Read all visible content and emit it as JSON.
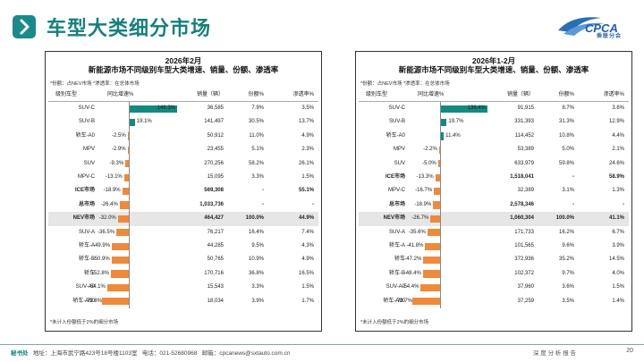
{
  "page": {
    "title": "车型大类细分市场",
    "logo_text": "CPCA",
    "logo_subtitle": "乘联分会",
    "page_number": "20",
    "report_label": "深 度 分 析 报 告"
  },
  "footer": {
    "secretariat_label": "秘书处",
    "address": "地址：上海市武宁路423号18号楼1103室",
    "phone": "电话：021-52680968",
    "email": "邮箱：cpcanews@sxtauto.com.cn"
  },
  "colors": {
    "accent": "#16807c",
    "positive_bar": "#138a80",
    "negative_bar": "#ef8a3a",
    "shade": "#e6e6e6"
  },
  "headers": {
    "segment": "级别车型",
    "growth": "同比增速%",
    "volume": "销量（辆）",
    "share": "份额%",
    "penetration": "渗透率%"
  },
  "chart_data": [
    {
      "type": "table",
      "period": "2026年2月",
      "title": "新能源市场不同级别车型大类增速、销量、份额、渗透率",
      "note": "*份额：占NEV市场   *渗透率：在总体市场",
      "footnote": "*未计入份额低于2%的细分市场",
      "growth_range": [
        -79.8,
        146.3
      ],
      "rows": [
        {
          "segment": "SUV-C",
          "growth": 146.3,
          "growth_label": "146.3%",
          "volume": "36,585",
          "share": "7.9%",
          "penetration": "3.5%",
          "shaded": false,
          "bold": false
        },
        {
          "segment": "SUV-B",
          "growth": 19.1,
          "growth_label": "19.1%",
          "volume": "141,497",
          "share": "30.5%",
          "penetration": "13.7%",
          "shaded": false,
          "bold": false
        },
        {
          "segment": "轿车-A0",
          "growth": -2.5,
          "growth_label": "-2.5%",
          "volume": "50,912",
          "share": "11.0%",
          "penetration": "4.9%",
          "shaded": false,
          "bold": false
        },
        {
          "segment": "MPV",
          "growth": -2.9,
          "growth_label": "-2.9%",
          "volume": "23,455",
          "share": "5.1%",
          "penetration": "2.3%",
          "shaded": false,
          "bold": false
        },
        {
          "segment": "SUV",
          "growth": -9.3,
          "growth_label": "-9.3%",
          "volume": "270,256",
          "share": "58.2%",
          "penetration": "26.1%",
          "shaded": false,
          "bold": false
        },
        {
          "segment": "MPV-C",
          "growth": -13.1,
          "growth_label": "-13.1%",
          "volume": "15,095",
          "share": "3.3%",
          "penetration": "1.5%",
          "shaded": false,
          "bold": false
        },
        {
          "segment": "ICE市场",
          "growth": -18.9,
          "growth_label": "-18.9%",
          "volume": "569,308",
          "share": "-",
          "penetration": "55.1%",
          "shaded": false,
          "bold": true
        },
        {
          "segment": "总市场",
          "growth": -26.4,
          "growth_label": "-26.4%",
          "volume": "1,033,736",
          "share": "-",
          "penetration": "-",
          "shaded": false,
          "bold": true
        },
        {
          "segment": "NEV市场",
          "growth": -32.0,
          "growth_label": "-32.0%",
          "volume": "464,427",
          "share": "100.0%",
          "penetration": "44.9%",
          "shaded": true,
          "bold": true
        },
        {
          "segment": "SUV-A",
          "growth": -36.5,
          "growth_label": "-36.5%",
          "volume": "76,217",
          "share": "16.4%",
          "penetration": "7.4%",
          "shaded": false,
          "bold": false
        },
        {
          "segment": "轿车-A",
          "growth": -49.9,
          "growth_label": "-49.9%",
          "volume": "44,285",
          "share": "9.5%",
          "penetration": "4.3%",
          "shaded": false,
          "bold": false
        },
        {
          "segment": "轿车-B",
          "growth": -50.9,
          "growth_label": "-50.9%",
          "volume": "50,765",
          "share": "10.9%",
          "penetration": "4.9%",
          "shaded": false,
          "bold": false
        },
        {
          "segment": "轿车",
          "growth": -52.8,
          "growth_label": "-52.8%",
          "volume": "170,716",
          "share": "36.8%",
          "penetration": "16.5%",
          "shaded": false,
          "bold": false
        },
        {
          "segment": "SUV-A0",
          "growth": -64.1,
          "growth_label": "-64.1%",
          "volume": "15,543",
          "share": "3.3%",
          "penetration": "1.5%",
          "shaded": false,
          "bold": false
        },
        {
          "segment": "轿车-A00",
          "growth": -79.8,
          "growth_label": "-79.8%",
          "volume": "18,034",
          "share": "3.9%",
          "penetration": "1.7%",
          "shaded": false,
          "bold": false
        }
      ]
    },
    {
      "type": "table",
      "period": "2026年1-2月",
      "title": "新能源市场不同级别车型大类增速、销量、份额、渗透率",
      "note": "*份额：占NEV市场   *渗透率：在总体市场",
      "footnote": "*未计入份额低于2%的细分市场",
      "growth_range": [
        -78.7,
        136.4
      ],
      "rows": [
        {
          "segment": "SUV-C",
          "growth": 136.4,
          "growth_label": "136.4%",
          "volume": "91,915",
          "share": "8.7%",
          "penetration": "3.6%",
          "shaded": false,
          "bold": false
        },
        {
          "segment": "SUV-B",
          "growth": 19.7,
          "growth_label": "19.7%",
          "volume": "331,393",
          "share": "31.3%",
          "penetration": "12.9%",
          "shaded": false,
          "bold": false
        },
        {
          "segment": "轿车-A0",
          "growth": 11.4,
          "growth_label": "11.4%",
          "volume": "114,452",
          "share": "10.8%",
          "penetration": "4.4%",
          "shaded": false,
          "bold": false
        },
        {
          "segment": "MPV",
          "growth": -2.2,
          "growth_label": "-2.2%",
          "volume": "53,389",
          "share": "5.0%",
          "penetration": "2.1%",
          "shaded": false,
          "bold": false
        },
        {
          "segment": "SUV",
          "growth": -5.0,
          "growth_label": "-5.0%",
          "volume": "633,979",
          "share": "59.8%",
          "penetration": "24.6%",
          "shaded": false,
          "bold": false
        },
        {
          "segment": "ICE市场",
          "growth": -13.3,
          "growth_label": "-13.3%",
          "volume": "1,518,041",
          "share": "-",
          "penetration": "58.9%",
          "shaded": false,
          "bold": true
        },
        {
          "segment": "MPV-C",
          "growth": -16.7,
          "growth_label": "-16.7%",
          "volume": "32,389",
          "share": "3.1%",
          "penetration": "1.3%",
          "shaded": false,
          "bold": false
        },
        {
          "segment": "总市场",
          "growth": -18.9,
          "growth_label": "-18.9%",
          "volume": "2,578,346",
          "share": "-",
          "penetration": "-",
          "shaded": false,
          "bold": true
        },
        {
          "segment": "NEV市场",
          "growth": -26.7,
          "growth_label": "-26.7%",
          "volume": "1,060,304",
          "share": "100.0%",
          "penetration": "41.1%",
          "shaded": true,
          "bold": true
        },
        {
          "segment": "SUV-A",
          "growth": -35.6,
          "growth_label": "-35.6%",
          "volume": "171,733",
          "share": "16.2%",
          "penetration": "6.7%",
          "shaded": false,
          "bold": false
        },
        {
          "segment": "轿车-A",
          "growth": -41.8,
          "growth_label": "-41.8%",
          "volume": "101,565",
          "share": "9.6%",
          "penetration": "3.9%",
          "shaded": false,
          "bold": false
        },
        {
          "segment": "轿车",
          "growth": -47.2,
          "growth_label": "-47.2%",
          "volume": "372,936",
          "share": "35.2%",
          "penetration": "14.5%",
          "shaded": false,
          "bold": false
        },
        {
          "segment": "轿车-B",
          "growth": -48.4,
          "growth_label": "-48.4%",
          "volume": "102,372",
          "share": "9.7%",
          "penetration": "4.0%",
          "shaded": false,
          "bold": false
        },
        {
          "segment": "SUV-A0",
          "growth": -54.4,
          "growth_label": "-54.4%",
          "volume": "37,960",
          "share": "3.6%",
          "penetration": "1.5%",
          "shaded": false,
          "bold": false
        },
        {
          "segment": "轿车-A00",
          "growth": -78.7,
          "growth_label": "-78.7%",
          "volume": "37,259",
          "share": "3.5%",
          "penetration": "1.4%",
          "shaded": false,
          "bold": false
        }
      ]
    }
  ]
}
